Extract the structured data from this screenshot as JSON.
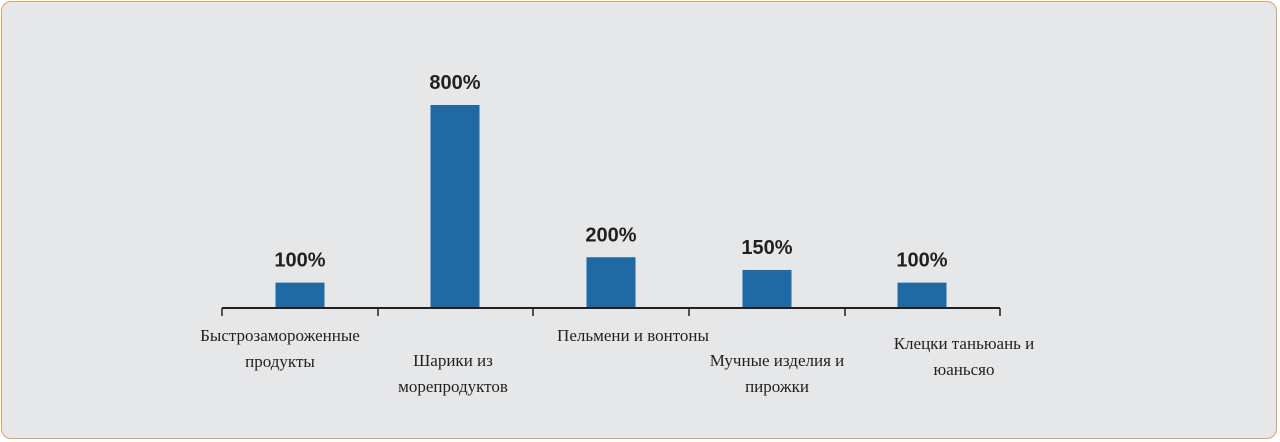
{
  "chart_data": {
    "type": "bar",
    "categories": [
      [
        "Быстрозамороженные",
        "продукты"
      ],
      [
        "Шарики из",
        "морепродуктов"
      ],
      [
        "Пельмени и вонтоны"
      ],
      [
        "Мучные изделия и",
        "пирожки"
      ],
      [
        "Клецки таньюань и",
        "юаньсяо"
      ]
    ],
    "values": [
      100,
      800,
      200,
      150,
      100
    ],
    "value_labels": [
      "100%",
      "800%",
      "200%",
      "150%",
      "100%"
    ],
    "ylim": [
      0,
      800
    ],
    "grid": false,
    "bar_color": "#1f6aa5",
    "axis_color": "#231f20"
  }
}
